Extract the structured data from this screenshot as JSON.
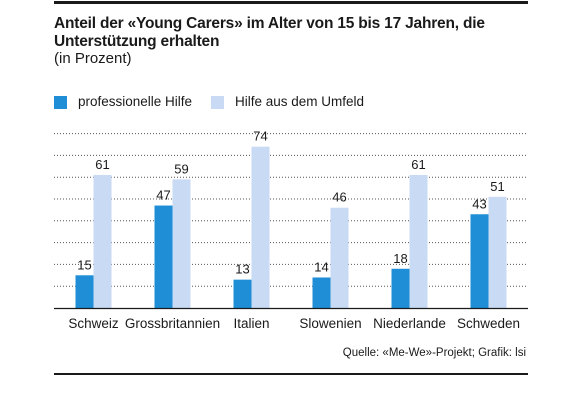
{
  "title": "Anteil der «Young Carers» im Alter von 15 bis 17 Jahren, die Unterstützung erhalten",
  "subtitle": "(in Prozent)",
  "source": "Quelle: «Me-We»-Projekt; Grafik: lsi",
  "colors": {
    "professionelle": "#1f8ed6",
    "umfeld": "#c9daf4",
    "text": "#1a1a1a",
    "grid": "#555555"
  },
  "legend": [
    {
      "label": "professionelle Hilfe",
      "color": "#1f8ed6"
    },
    {
      "label": "Hilfe aus dem Umfeld",
      "color": "#c9daf4"
    }
  ],
  "chart_data": {
    "type": "bar",
    "title": "Anteil der «Young Carers» im Alter von 15 bis 17 Jahren, die Unterstützung erhalten",
    "subtitle": "(in Prozent)",
    "categories": [
      "Schweiz",
      "Grossbritannien",
      "Italien",
      "Slowenien",
      "Niederlande",
      "Schweden"
    ],
    "series": [
      {
        "name": "professionelle Hilfe",
        "values": [
          15,
          47,
          13,
          14,
          18,
          43
        ],
        "color": "#1f8ed6"
      },
      {
        "name": "Hilfe aus dem Umfeld",
        "values": [
          61,
          59,
          74,
          46,
          61,
          51
        ],
        "color": "#c9daf4"
      }
    ],
    "ylim": [
      0,
      80
    ],
    "grid": true,
    "legend_position": "top-left",
    "xlabel": "",
    "ylabel": ""
  }
}
